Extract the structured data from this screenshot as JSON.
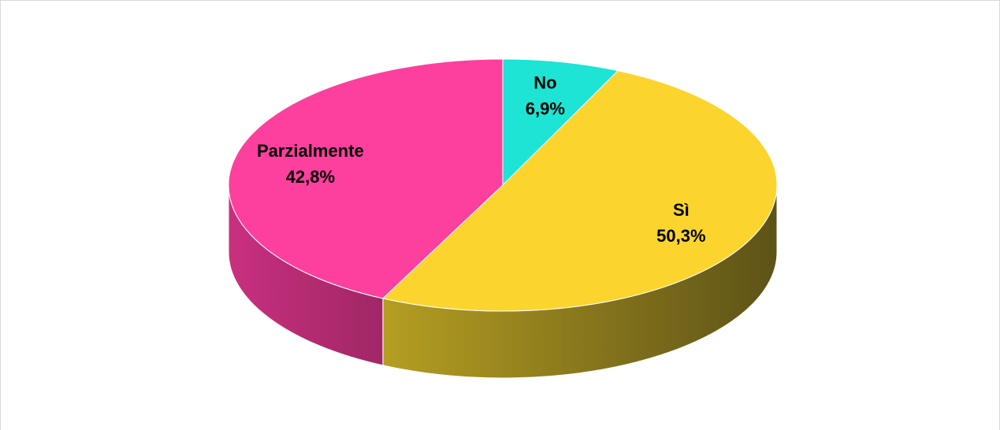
{
  "chart_data": {
    "type": "pie",
    "categories": [
      "No",
      "Sì",
      "Parzialmente"
    ],
    "values": [
      6.9,
      50.3,
      42.8
    ],
    "value_labels": [
      "6,9%",
      "50,3%",
      "42,8%"
    ],
    "colors": [
      "#1de4d4",
      "#fcd42e",
      "#fd3f9e"
    ],
    "side_colors": [
      [
        "#16a89c",
        "#0e6e66"
      ],
      [
        "#b59e22",
        "#5d5217"
      ],
      [
        "#c9307f",
        "#a02766"
      ]
    ]
  }
}
